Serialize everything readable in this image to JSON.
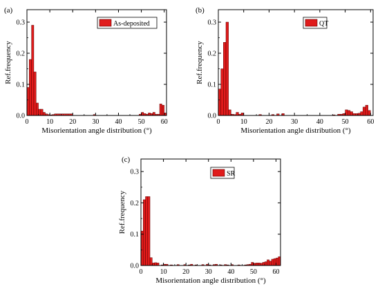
{
  "bar_fill": "#e01b1b",
  "bar_stroke": "#5a0000",
  "chart_data": [
    {
      "type": "bar",
      "panel_label": "(a)",
      "legend": "As-deposited",
      "legend_placement": "top-right",
      "xlabel": "Misorientation angle distribution (°)",
      "ylabel": "Ref.frequency",
      "xlim": [
        0,
        61
      ],
      "ylim": [
        0,
        0.34
      ],
      "xticks": [
        0,
        10,
        20,
        30,
        40,
        50,
        60
      ],
      "yticks": [
        0.0,
        0.1,
        0.2,
        0.3
      ],
      "ytick_labels": [
        "0.0",
        "0.1",
        "0.2",
        "0.3"
      ],
      "bin_width": 1,
      "x": [
        0.5,
        1.5,
        2.5,
        3.5,
        4.5,
        5.5,
        6.5,
        7.5,
        8.5,
        9.5,
        10.5,
        11.5,
        12.5,
        13.5,
        14.5,
        15.5,
        16.5,
        17.5,
        18.5,
        19.5,
        29.5,
        49.5,
        50.5,
        51.5,
        52.5,
        53.5,
        54.5,
        55.5,
        56.5,
        57.5,
        58.5,
        59.5,
        60.5
      ],
      "values": [
        0.09,
        0.18,
        0.29,
        0.14,
        0.04,
        0.02,
        0.02,
        0.01,
        0.005,
        0.003,
        0.002,
        0.003,
        0.005,
        0.005,
        0.005,
        0.005,
        0.005,
        0.005,
        0.005,
        0.005,
        0.003,
        0.004,
        0.01,
        0.006,
        0.004,
        0.008,
        0.006,
        0.01,
        0.004,
        0.004,
        0.037,
        0.033,
        0.008
      ]
    },
    {
      "type": "bar",
      "panel_label": "(b)",
      "legend": "QT",
      "legend_placement": "top-right",
      "xlabel": "Misorientation angle distribution (°)",
      "ylabel": "Ref.frequency",
      "xlim": [
        0,
        61
      ],
      "ylim": [
        0,
        0.34
      ],
      "xticks": [
        0,
        10,
        20,
        30,
        40,
        50,
        60
      ],
      "yticks": [
        0.0,
        0.1,
        0.2,
        0.3
      ],
      "ytick_labels": [
        "0.0",
        "0.1",
        "0.2",
        "0.3"
      ],
      "bin_width": 1,
      "x": [
        0.5,
        1.5,
        2.5,
        3.5,
        4.5,
        5.5,
        6.5,
        7.5,
        8.5,
        9.5,
        16.5,
        21.5,
        23.5,
        25.5,
        45.5,
        47.5,
        48.5,
        49.5,
        50.5,
        51.5,
        52.5,
        53.5,
        54.5,
        55.5,
        56.5,
        57.5,
        58.5,
        59.5
      ],
      "values": [
        0.085,
        0.15,
        0.235,
        0.3,
        0.018,
        0.004,
        0.003,
        0.01,
        0.004,
        0.008,
        0.003,
        0.003,
        0.005,
        0.006,
        0.002,
        0.004,
        0.004,
        0.006,
        0.018,
        0.016,
        0.012,
        0.006,
        0.006,
        0.007,
        0.012,
        0.027,
        0.033,
        0.016
      ]
    },
    {
      "type": "bar",
      "panel_label": "(c)",
      "legend": "SR",
      "legend_placement": "top-right",
      "xlabel": "Misorientation angle distribution (°)",
      "ylabel": "Ref.frequency",
      "xlim": [
        0,
        62
      ],
      "ylim": [
        0,
        0.34
      ],
      "xticks": [
        0,
        10,
        20,
        30,
        40,
        50,
        60
      ],
      "yticks": [
        0.0,
        0.1,
        0.2,
        0.3
      ],
      "ytick_labels": [
        "0.0",
        "0.1",
        "0.2",
        "0.3"
      ],
      "bin_width": 1,
      "x": [
        0.5,
        1.5,
        2.5,
        3.5,
        4.5,
        5.5,
        6.5,
        7.5,
        9.5,
        10.5,
        11.5,
        13.5,
        16.5,
        19.5,
        21.5,
        22.5,
        24.5,
        27.5,
        29.5,
        30.5,
        32.5,
        33.5,
        35.5,
        37.5,
        38.5,
        40.5,
        43.5,
        46.5,
        47.5,
        48.5,
        49.5,
        50.5,
        51.5,
        52.5,
        53.5,
        54.5,
        55.5,
        56.5,
        57.5,
        58.5,
        59.5,
        60.5,
        61.5
      ],
      "values": [
        0.11,
        0.21,
        0.22,
        0.22,
        0.025,
        0.008,
        0.009,
        0.008,
        0.002,
        0.004,
        0.004,
        0.002,
        0.003,
        0.003,
        0.002,
        0.004,
        0.002,
        0.003,
        0.004,
        0.002,
        0.003,
        0.004,
        0.002,
        0.003,
        0.002,
        0.003,
        0.002,
        0.002,
        0.003,
        0.004,
        0.01,
        0.007,
        0.008,
        0.008,
        0.007,
        0.01,
        0.012,
        0.018,
        0.014,
        0.02,
        0.022,
        0.024,
        0.028
      ]
    }
  ]
}
